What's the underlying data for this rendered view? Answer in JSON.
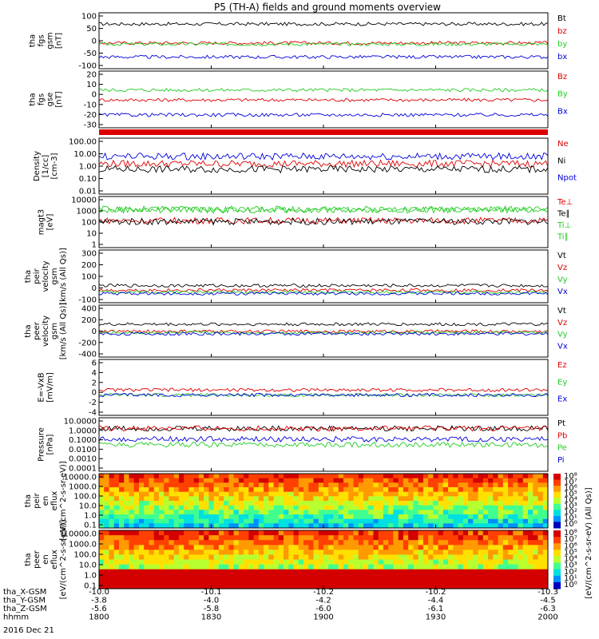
{
  "title": "P5 (TH-A) fields and ground moments overview",
  "colors": {
    "black": "#000000",
    "red": "#dd0000",
    "green": "#22cc22",
    "blue": "#0000dd"
  },
  "chart_data": [
    {
      "id": "fgs_gsm",
      "type": "line",
      "ylabel": [
        "tha",
        "fgs",
        "gsm",
        "[nT]"
      ],
      "yticks": [
        "100",
        "50",
        "0",
        "-50",
        "-100"
      ],
      "ylim": [
        -100,
        100
      ],
      "series": [
        {
          "name": "Bt",
          "color": "black",
          "level": 60,
          "variation": 2
        },
        {
          "name": "bz",
          "color": "red",
          "level": -8,
          "variation": 2
        },
        {
          "name": "by",
          "color": "green",
          "level": -12,
          "variation": 3
        },
        {
          "name": "bx",
          "color": "blue",
          "level": -58,
          "variation": 3
        }
      ]
    },
    {
      "id": "fgs_gse",
      "type": "line",
      "ylabel": [
        "tha",
        "fgs",
        "gse",
        "[nT]"
      ],
      "yticks": [
        "20",
        "10",
        "0",
        "-10",
        "-20",
        "-30"
      ],
      "ylim": [
        -35,
        22
      ],
      "series": [
        {
          "name": "Bz",
          "color": "red",
          "level": -7,
          "variation": 3
        },
        {
          "name": "By",
          "color": "green",
          "level": 3,
          "variation": 3
        },
        {
          "name": "Bx",
          "color": "blue",
          "level": -22,
          "variation": 3
        }
      ]
    },
    {
      "id": "density",
      "type": "line",
      "log": true,
      "ylabel": [
        "Density",
        "[1/cc]",
        "[cm-3]"
      ],
      "yticks": [
        "100.00",
        "10.00",
        "1.00",
        "0.10",
        "0.01"
      ],
      "ylim": [
        0.01,
        100
      ],
      "series": [
        {
          "name": "Ne",
          "color": "red",
          "level": 1.5
        },
        {
          "name": "Ni",
          "color": "black",
          "level": 0.6
        },
        {
          "name": "Npot",
          "color": "blue",
          "level": 5
        }
      ]
    },
    {
      "id": "temperature",
      "type": "line",
      "log": true,
      "ylabel": [
        "magt3",
        "[eV]"
      ],
      "yticks": [
        "10000",
        "1000",
        "100",
        "10",
        "1"
      ],
      "ylim": [
        1,
        10000
      ],
      "series": [
        {
          "name": "Te⊥",
          "color": "red",
          "level": 130
        },
        {
          "name": "Te∥",
          "color": "black",
          "level": 110
        },
        {
          "name": "Ti⊥",
          "color": "green",
          "level": 1000
        },
        {
          "name": "Ti∥",
          "color": "green",
          "level": 900
        }
      ]
    },
    {
      "id": "peir_velocity",
      "type": "line",
      "ylabel": [
        "tha",
        "peir",
        "velocity",
        "gsm",
        "[km/s (All Qs)]"
      ],
      "yticks": [
        "300",
        "200",
        "100",
        "0",
        "-100"
      ],
      "ylim": [
        -100,
        300
      ],
      "series": [
        {
          "name": "Vt",
          "color": "black",
          "level": 30
        },
        {
          "name": "Vz",
          "color": "red",
          "level": -5
        },
        {
          "name": "Vy",
          "color": "green",
          "level": -20
        },
        {
          "name": "Vx",
          "color": "blue",
          "level": -30
        }
      ]
    },
    {
      "id": "peer_velocity",
      "type": "line",
      "ylabel": [
        "tha",
        "peer",
        "velocity",
        "gsm",
        "[km/s (All Qs)]"
      ],
      "yticks": [
        "400",
        "200",
        "0",
        "-200",
        "-400"
      ],
      "ylim": [
        -450,
        420
      ],
      "series": [
        {
          "name": "Vt",
          "color": "black",
          "level": 100
        },
        {
          "name": "Vz",
          "color": "red",
          "level": -20
        },
        {
          "name": "Vy",
          "color": "green",
          "level": -40
        },
        {
          "name": "Vx",
          "color": "blue",
          "level": -60
        }
      ]
    },
    {
      "id": "efield",
      "type": "line",
      "ylabel": [
        "E=-VxB",
        "[mV/m]"
      ],
      "yticks": [
        "6",
        "4",
        "2",
        "0",
        "-2",
        "-4"
      ],
      "ylim": [
        -4,
        7
      ],
      "series": [
        {
          "name": "Ez",
          "color": "red",
          "level": 1
        },
        {
          "name": "Ey",
          "color": "green",
          "level": 0
        },
        {
          "name": "Ex",
          "color": "blue",
          "level": 0
        }
      ]
    },
    {
      "id": "pressure",
      "type": "line",
      "log": true,
      "ylabel": [
        "Pressure",
        "[nPa]"
      ],
      "yticks": [
        "10.0000",
        "1.0000",
        "0.1000",
        "0.0100",
        "0.0010",
        "0.0001"
      ],
      "ylim": [
        0.0001,
        10
      ],
      "series": [
        {
          "name": "Pt",
          "color": "black",
          "level": 1.0
        },
        {
          "name": "Pb",
          "color": "red",
          "level": 1.0
        },
        {
          "name": "Pe",
          "color": "green",
          "level": 0.03
        },
        {
          "name": "Pi",
          "color": "blue",
          "level": 0.1
        }
      ]
    },
    {
      "id": "peir_eflux",
      "type": "heatmap",
      "ylabel": [
        "tha",
        "peir",
        "en",
        "eflux",
        "[eV/(cm^2-s-sr-eV)]"
      ],
      "yticks": [
        "10000.0",
        "1000.0",
        "100.0",
        "10.0",
        "1.0",
        "0.1"
      ],
      "colorbar": [
        "10⁸",
        "10⁷",
        "10⁶",
        "10⁵",
        "10⁴",
        "10³",
        "10²",
        "10¹",
        "10⁰"
      ]
    },
    {
      "id": "peer_eflux",
      "type": "heatmap",
      "ylabel": [
        "tha",
        "peer",
        "en",
        "eflux",
        "[eV/(cm^2-s-sr-eV)]"
      ],
      "yticks": [
        "10000.0",
        "1000.0",
        "100.0",
        "10.0",
        "1.0",
        "0.1"
      ],
      "colorbar": [
        "10⁸",
        "10⁷",
        "10⁶",
        "10⁵",
        "10⁴",
        "10³",
        "10²",
        "10¹",
        "10⁰"
      ]
    }
  ],
  "colorbar_label": "[eV/(cm^2-s-sr-eV) (All Qs)]",
  "footer": {
    "rows": [
      {
        "label": "tha_X-GSM",
        "values": [
          "-10.0",
          "-10.1",
          "-10.2",
          "-10.2",
          "-10.3"
        ]
      },
      {
        "label": "tha_Y-GSM",
        "values": [
          "-3.8",
          "-4.0",
          "-4.2",
          "-4.4",
          "-4.5"
        ]
      },
      {
        "label": "tha_Z-GSM",
        "values": [
          "-5.6",
          "-5.8",
          "-6.0",
          "-6.1",
          "-6.3"
        ]
      },
      {
        "label": "hhmm",
        "values": [
          "1800",
          "1830",
          "1900",
          "1930",
          "2000"
        ]
      }
    ],
    "date": "2016 Dec 21"
  }
}
